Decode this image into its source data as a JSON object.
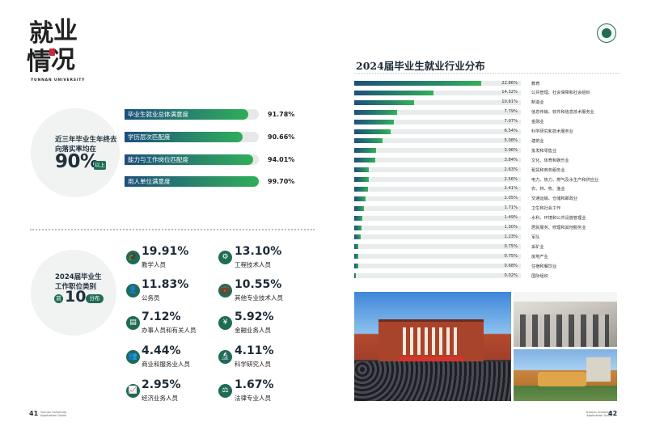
{
  "title": {
    "chars": [
      "就",
      "业",
      "情",
      "况"
    ],
    "university_en": "YUNNAN UNIVERSITY"
  },
  "satisfaction": {
    "circle_lines": [
      "近三年毕业生年终去",
      "向落实率均在"
    ],
    "big_value": "90%",
    "big_suffix": "以上",
    "items": [
      {
        "label": "毕业生就业总体满意度",
        "value": "91.78%",
        "pct": 91.78
      },
      {
        "label": "学历层次匹配度",
        "value": "90.66%",
        "pct": 90.66
      },
      {
        "label": "能力与工作岗位匹配度",
        "value": "94.01%",
        "pct": 94.01
      },
      {
        "label": "用人单位满意度",
        "value": "99.70%",
        "pct": 99.7
      }
    ]
  },
  "jobs": {
    "circle_lines": [
      "2024届毕业生",
      "工作职位类别"
    ],
    "prefix": "前",
    "big_value": "10",
    "suffix": "分布",
    "left": [
      {
        "pct": "19.91%",
        "name": "教学人员",
        "icon": "graduation-cap-icon",
        "glyph": "🎓"
      },
      {
        "pct": "11.83%",
        "name": "公务员",
        "icon": "person-icon",
        "glyph": "👤"
      },
      {
        "pct": "7.12%",
        "name": "办事人员和有关人员",
        "icon": "id-card-icon",
        "glyph": "▤"
      },
      {
        "pct": "4.44%",
        "name": "商业和服务业人员",
        "icon": "service-person-icon",
        "glyph": "👥"
      },
      {
        "pct": "2.95%",
        "name": "经济业务人员",
        "icon": "chart-document-icon",
        "glyph": "📈"
      }
    ],
    "right": [
      {
        "pct": "13.10%",
        "name": "工程技术人员",
        "icon": "engineer-icon",
        "glyph": "⚙"
      },
      {
        "pct": "10.55%",
        "name": "其他专业技术人员",
        "icon": "briefcase-icon",
        "glyph": "💼"
      },
      {
        "pct": "5.92%",
        "name": "金融业务人员",
        "icon": "money-icon",
        "glyph": "¥"
      },
      {
        "pct": "4.11%",
        "name": "科学研究人员",
        "icon": "researcher-icon",
        "glyph": "🔬"
      },
      {
        "pct": "1.67%",
        "name": "法律专业人员",
        "icon": "gavel-icon",
        "glyph": "⚖"
      }
    ]
  },
  "chart_data": {
    "type": "bar",
    "orientation": "horizontal",
    "title": "2024届毕业生就业行业分布",
    "xlim": [
      0,
      30
    ],
    "categories": [
      "教育",
      "公共管理、社会保障和社会组织",
      "制造业",
      "信息传输、软件和信息技术服务业",
      "金融业",
      "科学研究和技术服务业",
      "建筑业",
      "批发和零售业",
      "文化、体育和娱乐业",
      "租赁和商务服务业",
      "电力、热力、燃气及水生产和供应业",
      "农、林、牧、渔业",
      "交通运输、仓储和邮政业",
      "卫生和社会工作",
      "水利、环境和公共设施管理业",
      "居民服务、修理和其他服务业",
      "军队",
      "采矿业",
      "房地产业",
      "住宿和餐饮业",
      "国际组织"
    ],
    "values": [
      22.86,
      14.32,
      10.81,
      7.79,
      7.07,
      6.54,
      5.08,
      3.96,
      3.84,
      2.63,
      2.56,
      2.41,
      2.05,
      1.71,
      1.49,
      1.3,
      1.23,
      0.75,
      0.75,
      0.68,
      0.02
    ],
    "labels": [
      "22.86%",
      "14.32%",
      "10.81%",
      "7.79%",
      "7.07%",
      "6.54%",
      "5.08%",
      "3.96%",
      "3.84%",
      "2.63%",
      "2.56%",
      "2.41%",
      "2.05%",
      "1.71%",
      "1.49%",
      "1.30%",
      "1.23%",
      "0.75%",
      "0.75%",
      "0.68%",
      "0.02%"
    ]
  },
  "footer": {
    "left_num": "41",
    "left_text": [
      "Yunnan University",
      "Application Guide"
    ],
    "right_num": "42",
    "right_text": [
      "Yunnan University",
      "Application Guide"
    ]
  },
  "colors": {
    "accent_dark": "#1c4f7e",
    "accent_green": "#2fae59",
    "icon_green": "#1f6c55"
  }
}
